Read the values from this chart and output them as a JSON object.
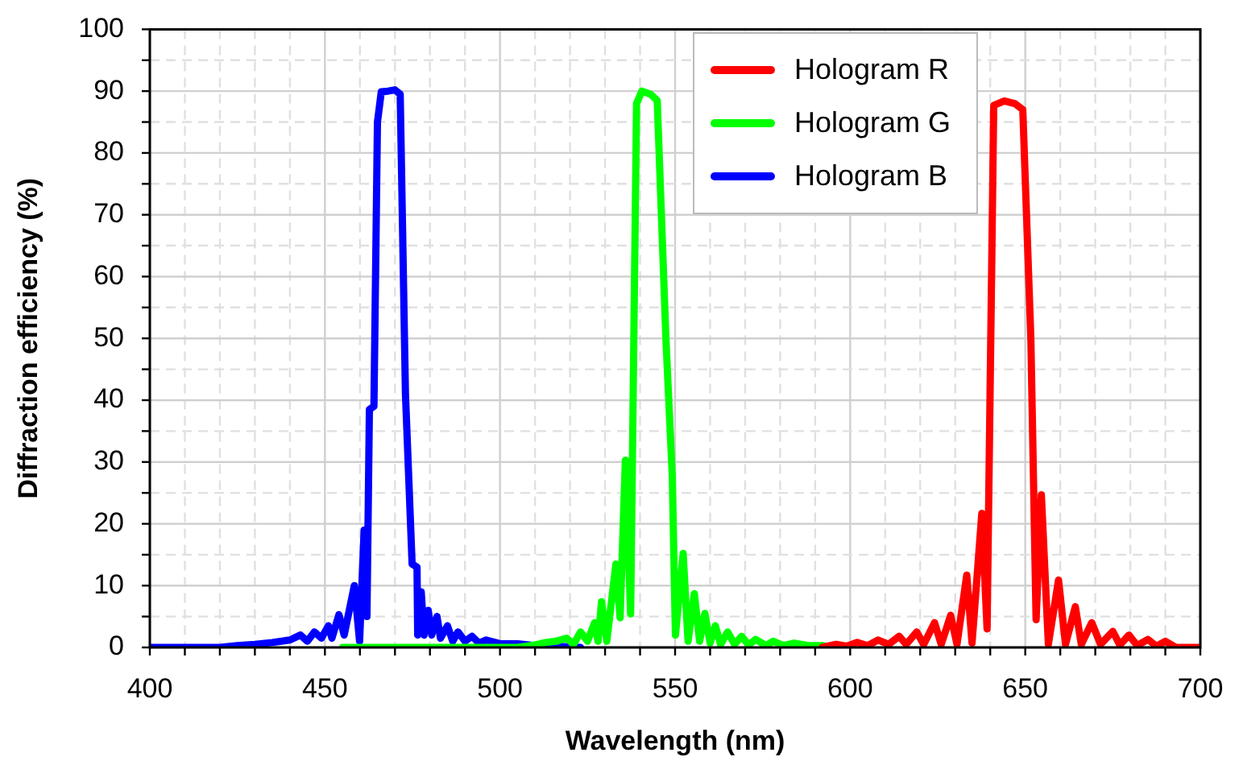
{
  "chart_data": {
    "type": "line",
    "xlabel": "Wavelength (nm)",
    "ylabel": "Diffraction efficiency (%)",
    "xlim": [
      400,
      700
    ],
    "xticks": [
      400,
      {
        "value": 410,
        "label": null
      },
      {
        "value": 420,
        "label": null
      },
      {
        "value": 430,
        "label": null
      },
      {
        "value": 440,
        "label": null
      },
      450,
      {
        "value": 460,
        "label": null
      },
      {
        "value": 470,
        "label": null
      },
      {
        "value": 480,
        "label": null
      },
      {
        "value": 490,
        "label": null
      },
      500,
      {
        "value": 510,
        "label": null
      },
      {
        "value": 520,
        "label": null
      },
      {
        "value": 530,
        "label": null
      },
      {
        "value": 540,
        "label": null
      },
      550,
      {
        "value": 560,
        "label": null
      },
      {
        "value": 570,
        "label": null
      },
      {
        "value": 580,
        "label": null
      },
      {
        "value": 590,
        "label": null
      },
      600,
      {
        "value": 610,
        "label": null
      },
      {
        "value": 620,
        "label": null
      },
      {
        "value": 630,
        "label": null
      },
      {
        "value": 640,
        "label": null
      },
      650,
      {
        "value": 660,
        "label": null
      },
      {
        "value": 670,
        "label": null
      },
      {
        "value": 680,
        "label": null
      },
      {
        "value": 690,
        "label": null
      },
      700
    ],
    "ylim": [
      0,
      100
    ],
    "yticks": [
      0,
      {
        "value": 5,
        "label": null
      },
      10,
      {
        "value": 15,
        "label": null
      },
      20,
      {
        "value": 25,
        "label": null
      },
      30,
      {
        "value": 35,
        "label": null
      },
      40,
      {
        "value": 45,
        "label": null
      },
      50,
      {
        "value": 55,
        "label": null
      },
      60,
      {
        "value": 65,
        "label": null
      },
      70,
      {
        "value": 75,
        "label": null
      },
      80,
      {
        "value": 85,
        "label": null
      },
      90,
      {
        "value": 95,
        "label": null
      },
      100
    ],
    "grid": true,
    "legend": "top right",
    "marker": "none",
    "line_style": "solid",
    "series": [
      {
        "name": "Hologram R",
        "color": "#ff0000",
        "x": [
          592,
          596,
          599,
          602,
          605,
          608,
          611,
          614,
          616,
          619,
          621,
          624.1,
          626,
          628.7,
          630.5,
          633.3,
          634.8,
          637.6,
          639.1,
          641,
          644,
          647,
          649.3,
          651.6,
          653.1,
          654.6,
          656.6,
          659.5,
          661.5,
          664.3,
          666,
          669,
          671.5,
          675,
          677,
          679.6,
          682,
          685,
          687.5,
          690,
          693,
          700
        ],
        "values": [
          0,
          0.5,
          0.2,
          0.8,
          0.3,
          1.2,
          0.5,
          1.8,
          0.5,
          2.5,
          0.5,
          4,
          0.5,
          5.2,
          0.5,
          11.7,
          0.7,
          21.7,
          3,
          87.7,
          88.4,
          88,
          87,
          50,
          4.5,
          24.7,
          0.5,
          10.9,
          0.5,
          6.6,
          0.5,
          4,
          0.5,
          2.6,
          0.4,
          2,
          0.3,
          1.3,
          0.2,
          1,
          0,
          0
        ]
      },
      {
        "name": "Hologram G",
        "color": "#00ff00",
        "x": [
          455,
          505,
          510,
          513,
          516,
          519,
          521,
          523,
          525,
          527,
          528,
          529,
          530.5,
          533.1,
          534.3,
          535.8,
          537.3,
          539,
          540.5,
          543,
          544.9,
          547.4,
          549.2,
          550.1,
          552.3,
          553.7,
          555.5,
          557,
          558.5,
          560,
          561.5,
          563,
          565,
          567,
          569,
          571,
          573,
          576,
          578,
          581,
          584,
          588,
          592,
          595
        ],
        "values": [
          0,
          0,
          0.4,
          0.8,
          1,
          1.5,
          0.5,
          2.5,
          1,
          4,
          1,
          7.4,
          1,
          13.5,
          4.8,
          30.3,
          5.4,
          88,
          90,
          89.5,
          88.5,
          49.7,
          27.7,
          2,
          15.2,
          1,
          8.7,
          1,
          5.5,
          0.7,
          3.5,
          0.5,
          2.5,
          0.5,
          1.8,
          0.4,
          1.3,
          0.3,
          1,
          0.3,
          0.7,
          0.3,
          0.3,
          0
        ]
      },
      {
        "name": "Hologram B",
        "color": "#0000ff",
        "x": [
          400,
          420,
          425,
          430,
          435,
          440,
          443,
          445,
          447,
          449,
          451,
          452,
          454,
          455.5,
          458.4,
          459.9,
          461.2,
          462,
          462.7,
          464,
          465,
          466.1,
          468,
          470,
          471.5,
          473,
          474.9,
          476.3,
          476.5,
          477.5,
          478.3,
          479.5,
          480.5,
          482,
          483,
          485,
          486.5,
          488,
          490,
          492,
          494,
          496,
          500,
          505,
          510,
          520,
          523
        ],
        "values": [
          0,
          0,
          0.3,
          0.5,
          0.8,
          1.2,
          2,
          1,
          2.5,
          1.5,
          3.5,
          1.5,
          5.3,
          2,
          10,
          1,
          19,
          5,
          38.5,
          39,
          85,
          89.9,
          90,
          90.2,
          89.5,
          41,
          13.5,
          13,
          2,
          9,
          2,
          6,
          2,
          5,
          1.5,
          3.5,
          1,
          2.5,
          1,
          1.8,
          0.7,
          1.2,
          0.6,
          0.6,
          0.3,
          0.1,
          0
        ]
      }
    ]
  }
}
